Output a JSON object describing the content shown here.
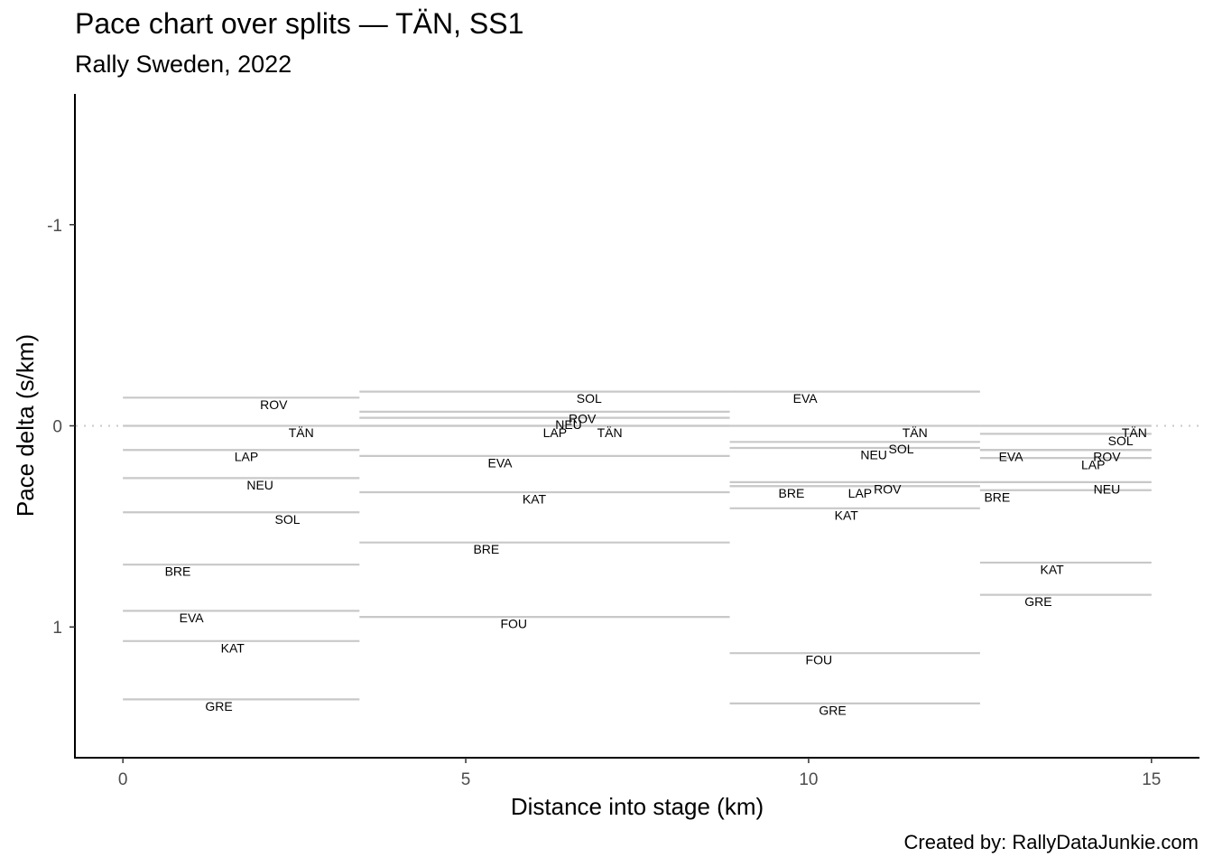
{
  "chart_data": {
    "type": "step-segments",
    "title": "Pace chart over splits — TÄN, SS1",
    "subtitle": "Rally Sweden, 2022",
    "caption": "Created by: RallyDataJunkie.com",
    "xlabel": "Distance into stage (km)",
    "ylabel": "Pace delta (s/km)",
    "xlim": [
      -0.7,
      15.7
    ],
    "ylim": [
      1.65,
      -1.65
    ],
    "y_reversed": true,
    "xticks": [
      0,
      5,
      10,
      15
    ],
    "yticks": [
      -1,
      0,
      1
    ],
    "reference_line_y": 0,
    "grid": false,
    "splits": [
      {
        "start_km": 0,
        "end_km": 3.45,
        "entries": [
          {
            "driver": "ROV",
            "delta": -0.14,
            "label_km": 2.2
          },
          {
            "driver": "TÄN",
            "delta": 0.0,
            "label_km": 2.6
          },
          {
            "driver": "LAP",
            "delta": 0.12,
            "label_km": 1.8
          },
          {
            "driver": "NEU",
            "delta": 0.26,
            "label_km": 2.0
          },
          {
            "driver": "SOL",
            "delta": 0.43,
            "label_km": 2.4
          },
          {
            "driver": "BRE",
            "delta": 0.69,
            "label_km": 0.8
          },
          {
            "driver": "EVA",
            "delta": 0.92,
            "label_km": 1.0
          },
          {
            "driver": "KAT",
            "delta": 1.07,
            "label_km": 1.6
          },
          {
            "driver": "GRE",
            "delta": 1.36,
            "label_km": 1.4
          }
        ]
      },
      {
        "start_km": 3.45,
        "end_km": 8.85,
        "entries": [
          {
            "driver": "SOL",
            "delta": -0.17,
            "label_km": 6.8
          },
          {
            "driver": "ROV",
            "delta": -0.07,
            "label_km": 6.7
          },
          {
            "driver": "NEU",
            "delta": -0.04,
            "label_km": 6.5
          },
          {
            "driver": "LAP",
            "delta": 0.0,
            "label_km": 6.3
          },
          {
            "driver": "TÄN",
            "delta": 0.0,
            "label_km": 7.1
          },
          {
            "driver": "EVA",
            "delta": 0.15,
            "label_km": 5.5
          },
          {
            "driver": "KAT",
            "delta": 0.33,
            "label_km": 6.0
          },
          {
            "driver": "BRE",
            "delta": 0.58,
            "label_km": 5.3
          },
          {
            "driver": "FOU",
            "delta": 0.95,
            "label_km": 5.7
          }
        ]
      },
      {
        "start_km": 8.85,
        "end_km": 12.5,
        "entries": [
          {
            "driver": "EVA",
            "delta": -0.17,
            "label_km": 9.95
          },
          {
            "driver": "TÄN",
            "delta": 0.0,
            "label_km": 11.55
          },
          {
            "driver": "SOL",
            "delta": 0.08,
            "label_km": 11.35
          },
          {
            "driver": "NEU",
            "delta": 0.11,
            "label_km": 10.95
          },
          {
            "driver": "ROV",
            "delta": 0.28,
            "label_km": 11.15
          },
          {
            "driver": "LAP",
            "delta": 0.3,
            "label_km": 10.75
          },
          {
            "driver": "BRE",
            "delta": 0.3,
            "label_km": 9.75
          },
          {
            "driver": "KAT",
            "delta": 0.41,
            "label_km": 10.55
          },
          {
            "driver": "FOU",
            "delta": 1.13,
            "label_km": 10.15
          },
          {
            "driver": "GRE",
            "delta": 1.38,
            "label_km": 10.35
          }
        ]
      },
      {
        "start_km": 12.5,
        "end_km": 15.0,
        "entries": [
          {
            "driver": "TÄN",
            "delta": 0.0,
            "label_km": 14.75
          },
          {
            "driver": "SOL",
            "delta": 0.04,
            "label_km": 14.55
          },
          {
            "driver": "EVA",
            "delta": 0.12,
            "label_km": 12.95
          },
          {
            "driver": "ROV",
            "delta": 0.12,
            "label_km": 14.35
          },
          {
            "driver": "LAP",
            "delta": 0.16,
            "label_km": 14.15
          },
          {
            "driver": "NEU",
            "delta": 0.28,
            "label_km": 14.35
          },
          {
            "driver": "BRE",
            "delta": 0.32,
            "label_km": 12.75
          },
          {
            "driver": "KAT",
            "delta": 0.68,
            "label_km": 13.55
          },
          {
            "driver": "GRE",
            "delta": 0.84,
            "label_km": 13.35
          }
        ]
      }
    ]
  }
}
